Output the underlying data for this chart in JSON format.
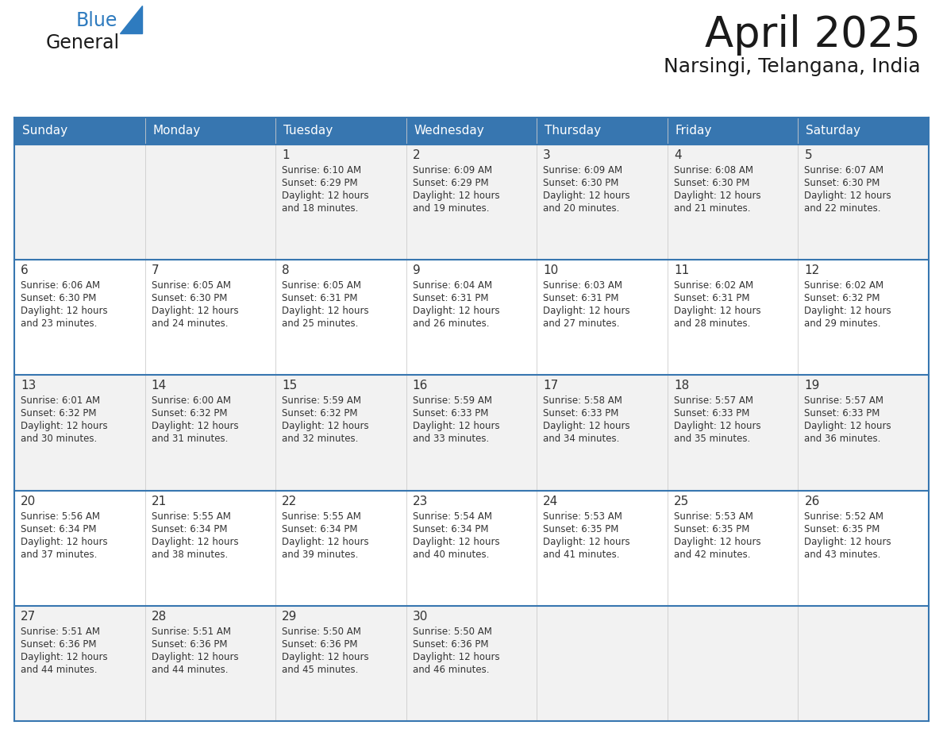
{
  "title": "April 2025",
  "subtitle": "Narsingi, Telangana, India",
  "header_bg_color": "#3776B0",
  "header_text_color": "#FFFFFF",
  "weekdays": [
    "Sunday",
    "Monday",
    "Tuesday",
    "Wednesday",
    "Thursday",
    "Friday",
    "Saturday"
  ],
  "row_bg_colors": [
    "#F2F2F2",
    "#FFFFFF",
    "#F2F2F2",
    "#FFFFFF",
    "#F2F2F2"
  ],
  "cell_border_color": "#3776B0",
  "text_color": "#333333",
  "logo_general_color": "#1a1a1a",
  "logo_blue_color": "#2E7BBF",
  "weeks": [
    [
      {
        "day": "",
        "sunrise": "",
        "sunset": "",
        "daylight": ""
      },
      {
        "day": "",
        "sunrise": "",
        "sunset": "",
        "daylight": ""
      },
      {
        "day": "1",
        "sunrise": "Sunrise: 6:10 AM",
        "sunset": "Sunset: 6:29 PM",
        "daylight": "Daylight: 12 hours\nand 18 minutes."
      },
      {
        "day": "2",
        "sunrise": "Sunrise: 6:09 AM",
        "sunset": "Sunset: 6:29 PM",
        "daylight": "Daylight: 12 hours\nand 19 minutes."
      },
      {
        "day": "3",
        "sunrise": "Sunrise: 6:09 AM",
        "sunset": "Sunset: 6:30 PM",
        "daylight": "Daylight: 12 hours\nand 20 minutes."
      },
      {
        "day": "4",
        "sunrise": "Sunrise: 6:08 AM",
        "sunset": "Sunset: 6:30 PM",
        "daylight": "Daylight: 12 hours\nand 21 minutes."
      },
      {
        "day": "5",
        "sunrise": "Sunrise: 6:07 AM",
        "sunset": "Sunset: 6:30 PM",
        "daylight": "Daylight: 12 hours\nand 22 minutes."
      }
    ],
    [
      {
        "day": "6",
        "sunrise": "Sunrise: 6:06 AM",
        "sunset": "Sunset: 6:30 PM",
        "daylight": "Daylight: 12 hours\nand 23 minutes."
      },
      {
        "day": "7",
        "sunrise": "Sunrise: 6:05 AM",
        "sunset": "Sunset: 6:30 PM",
        "daylight": "Daylight: 12 hours\nand 24 minutes."
      },
      {
        "day": "8",
        "sunrise": "Sunrise: 6:05 AM",
        "sunset": "Sunset: 6:31 PM",
        "daylight": "Daylight: 12 hours\nand 25 minutes."
      },
      {
        "day": "9",
        "sunrise": "Sunrise: 6:04 AM",
        "sunset": "Sunset: 6:31 PM",
        "daylight": "Daylight: 12 hours\nand 26 minutes."
      },
      {
        "day": "10",
        "sunrise": "Sunrise: 6:03 AM",
        "sunset": "Sunset: 6:31 PM",
        "daylight": "Daylight: 12 hours\nand 27 minutes."
      },
      {
        "day": "11",
        "sunrise": "Sunrise: 6:02 AM",
        "sunset": "Sunset: 6:31 PM",
        "daylight": "Daylight: 12 hours\nand 28 minutes."
      },
      {
        "day": "12",
        "sunrise": "Sunrise: 6:02 AM",
        "sunset": "Sunset: 6:32 PM",
        "daylight": "Daylight: 12 hours\nand 29 minutes."
      }
    ],
    [
      {
        "day": "13",
        "sunrise": "Sunrise: 6:01 AM",
        "sunset": "Sunset: 6:32 PM",
        "daylight": "Daylight: 12 hours\nand 30 minutes."
      },
      {
        "day": "14",
        "sunrise": "Sunrise: 6:00 AM",
        "sunset": "Sunset: 6:32 PM",
        "daylight": "Daylight: 12 hours\nand 31 minutes."
      },
      {
        "day": "15",
        "sunrise": "Sunrise: 5:59 AM",
        "sunset": "Sunset: 6:32 PM",
        "daylight": "Daylight: 12 hours\nand 32 minutes."
      },
      {
        "day": "16",
        "sunrise": "Sunrise: 5:59 AM",
        "sunset": "Sunset: 6:33 PM",
        "daylight": "Daylight: 12 hours\nand 33 minutes."
      },
      {
        "day": "17",
        "sunrise": "Sunrise: 5:58 AM",
        "sunset": "Sunset: 6:33 PM",
        "daylight": "Daylight: 12 hours\nand 34 minutes."
      },
      {
        "day": "18",
        "sunrise": "Sunrise: 5:57 AM",
        "sunset": "Sunset: 6:33 PM",
        "daylight": "Daylight: 12 hours\nand 35 minutes."
      },
      {
        "day": "19",
        "sunrise": "Sunrise: 5:57 AM",
        "sunset": "Sunset: 6:33 PM",
        "daylight": "Daylight: 12 hours\nand 36 minutes."
      }
    ],
    [
      {
        "day": "20",
        "sunrise": "Sunrise: 5:56 AM",
        "sunset": "Sunset: 6:34 PM",
        "daylight": "Daylight: 12 hours\nand 37 minutes."
      },
      {
        "day": "21",
        "sunrise": "Sunrise: 5:55 AM",
        "sunset": "Sunset: 6:34 PM",
        "daylight": "Daylight: 12 hours\nand 38 minutes."
      },
      {
        "day": "22",
        "sunrise": "Sunrise: 5:55 AM",
        "sunset": "Sunset: 6:34 PM",
        "daylight": "Daylight: 12 hours\nand 39 minutes."
      },
      {
        "day": "23",
        "sunrise": "Sunrise: 5:54 AM",
        "sunset": "Sunset: 6:34 PM",
        "daylight": "Daylight: 12 hours\nand 40 minutes."
      },
      {
        "day": "24",
        "sunrise": "Sunrise: 5:53 AM",
        "sunset": "Sunset: 6:35 PM",
        "daylight": "Daylight: 12 hours\nand 41 minutes."
      },
      {
        "day": "25",
        "sunrise": "Sunrise: 5:53 AM",
        "sunset": "Sunset: 6:35 PM",
        "daylight": "Daylight: 12 hours\nand 42 minutes."
      },
      {
        "day": "26",
        "sunrise": "Sunrise: 5:52 AM",
        "sunset": "Sunset: 6:35 PM",
        "daylight": "Daylight: 12 hours\nand 43 minutes."
      }
    ],
    [
      {
        "day": "27",
        "sunrise": "Sunrise: 5:51 AM",
        "sunset": "Sunset: 6:36 PM",
        "daylight": "Daylight: 12 hours\nand 44 minutes."
      },
      {
        "day": "28",
        "sunrise": "Sunrise: 5:51 AM",
        "sunset": "Sunset: 6:36 PM",
        "daylight": "Daylight: 12 hours\nand 44 minutes."
      },
      {
        "day": "29",
        "sunrise": "Sunrise: 5:50 AM",
        "sunset": "Sunset: 6:36 PM",
        "daylight": "Daylight: 12 hours\nand 45 minutes."
      },
      {
        "day": "30",
        "sunrise": "Sunrise: 5:50 AM",
        "sunset": "Sunset: 6:36 PM",
        "daylight": "Daylight: 12 hours\nand 46 minutes."
      },
      {
        "day": "",
        "sunrise": "",
        "sunset": "",
        "daylight": ""
      },
      {
        "day": "",
        "sunrise": "",
        "sunset": "",
        "daylight": ""
      },
      {
        "day": "",
        "sunrise": "",
        "sunset": "",
        "daylight": ""
      }
    ]
  ]
}
